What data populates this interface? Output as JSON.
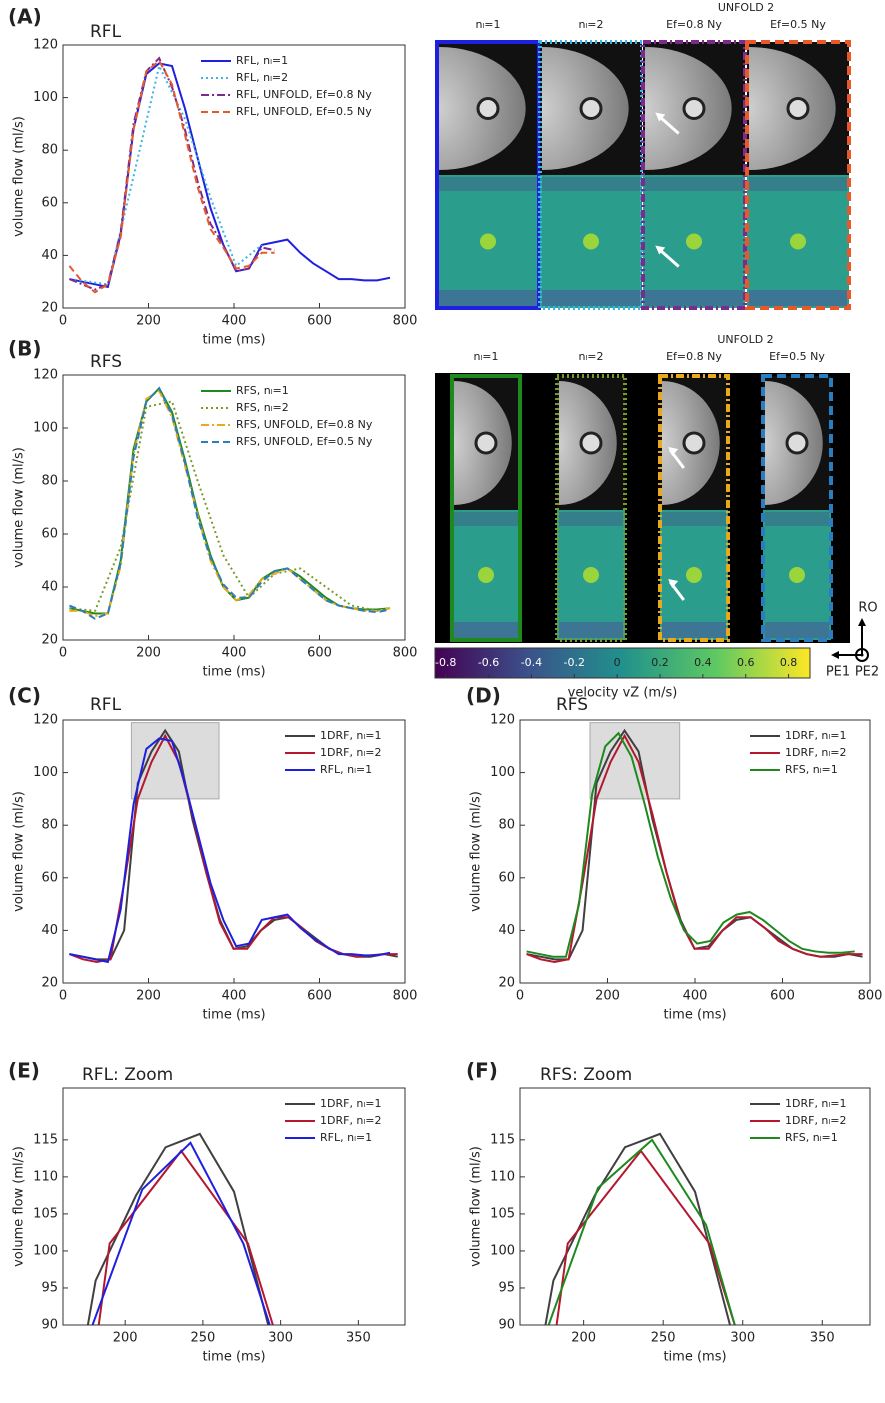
{
  "chart_data": [
    {
      "type": "line",
      "panel_label": "(A)",
      "title": "RFL",
      "xlabel": "time (ms)",
      "ylabel": "volume flow (ml/s)",
      "xlim": [
        0,
        800
      ],
      "ylim": [
        20,
        120
      ],
      "xticks": [
        0,
        200,
        400,
        600,
        800
      ],
      "yticks": [
        20,
        40,
        60,
        80,
        100,
        120
      ],
      "legend": "upper right",
      "series": [
        {
          "name": "RFL, nₗ=1",
          "color": "#1f1fe0",
          "dash": "solid",
          "x": [
            15,
            45,
            75,
            105,
            135,
            165,
            195,
            225,
            255,
            285,
            315,
            345,
            375,
            405,
            435,
            465,
            495,
            525,
            555,
            585,
            615,
            645,
            675,
            705,
            735,
            765
          ],
          "values": [
            31,
            30,
            29,
            28,
            48,
            88,
            109,
            113,
            112,
            96,
            77,
            58,
            44,
            34,
            35,
            44,
            45,
            46,
            41,
            37,
            34,
            31,
            31,
            30.5,
            30.5,
            31.5
          ]
        },
        {
          "name": "RFL, nₗ=2",
          "color": "#3bb4e6",
          "dash": "dotted",
          "x": [
            15,
            105,
            165,
            225,
            285,
            345,
            405,
            465
          ],
          "values": [
            31,
            29,
            70,
            112,
            92,
            62,
            36,
            44
          ]
        },
        {
          "name": "RFL, UNFOLD, Ef=0.8 Ny",
          "color": "#7b2a8e",
          "dash": "dashdot",
          "x": [
            15,
            45,
            75,
            105,
            135,
            165,
            195,
            225,
            255,
            285,
            315,
            345,
            375,
            405,
            435,
            465,
            495
          ],
          "values": [
            31,
            29,
            27,
            29,
            49,
            90,
            110,
            115,
            104,
            88,
            68,
            52,
            44,
            34,
            35,
            43,
            42
          ]
        },
        {
          "name": "RFL, UNFOLD, Ef=0.5 Ny",
          "color": "#e8592a",
          "dash": "dashed",
          "x": [
            15,
            45,
            75,
            105,
            135,
            165,
            195,
            225,
            255,
            285,
            315,
            345,
            375,
            405,
            435,
            465,
            495
          ],
          "values": [
            36,
            30,
            26,
            29,
            47,
            88,
            110,
            114,
            105,
            86,
            66,
            50,
            43,
            35,
            36,
            41,
            41
          ]
        }
      ]
    },
    {
      "type": "line",
      "panel_label": "(B)",
      "title": "RFS",
      "xlabel": "time (ms)",
      "ylabel": "volume flow (ml/s)",
      "xlim": [
        0,
        800
      ],
      "ylim": [
        20,
        120
      ],
      "xticks": [
        0,
        200,
        400,
        600,
        800
      ],
      "yticks": [
        20,
        40,
        60,
        80,
        100,
        120
      ],
      "legend": "upper right",
      "series": [
        {
          "name": "RFS, nₗ=1",
          "color": "#1e8a1e",
          "dash": "solid",
          "x": [
            15,
            45,
            75,
            105,
            135,
            165,
            195,
            225,
            255,
            285,
            315,
            345,
            375,
            405,
            435,
            465,
            495,
            525,
            555,
            585,
            615,
            645,
            675,
            705,
            735,
            765
          ],
          "values": [
            32,
            31,
            30,
            30,
            50,
            92,
            110,
            115,
            106,
            88,
            68,
            52,
            40,
            35,
            36,
            43,
            46,
            47,
            44,
            40,
            36,
            33,
            32,
            31.5,
            31.5,
            32
          ]
        },
        {
          "name": "RFS, nₗ=2",
          "color": "#7a9a2a",
          "dash": "dotted",
          "x": [
            15,
            75,
            135,
            195,
            255,
            315,
            375,
            435,
            495,
            555,
            615,
            675,
            735,
            765
          ],
          "values": [
            32,
            31,
            55,
            108,
            110,
            80,
            52,
            36,
            45,
            47,
            40,
            33,
            31,
            32
          ]
        },
        {
          "name": "RFS, UNFOLD, Ef=0.8 Ny",
          "color": "#e8a91a",
          "dash": "dashdot",
          "x": [
            15,
            45,
            75,
            105,
            135,
            165,
            195,
            225,
            255,
            285,
            315,
            345,
            375,
            405,
            435,
            465,
            495,
            525,
            555,
            585,
            615,
            645,
            675,
            705,
            735,
            765
          ],
          "values": [
            31,
            31,
            29,
            30,
            48,
            90,
            111,
            114,
            104,
            86,
            67,
            50,
            40,
            35,
            37,
            43,
            45,
            47,
            43,
            39,
            35,
            33,
            32,
            31,
            31,
            32
          ]
        },
        {
          "name": "RFS, UNFOLD, Ef=0.5 Ny",
          "color": "#2a7ec0",
          "dash": "dashed",
          "x": [
            15,
            45,
            75,
            105,
            135,
            165,
            195,
            225,
            255,
            285,
            315,
            345,
            375,
            405,
            435,
            465,
            495,
            525,
            555,
            585,
            615,
            645,
            675,
            705,
            735,
            765
          ],
          "values": [
            33,
            31,
            28,
            30,
            49,
            89,
            110,
            115,
            105,
            87,
            66,
            51,
            41,
            36,
            36,
            42,
            46,
            47,
            43,
            39,
            35,
            33,
            32,
            31,
            30.5,
            31.5
          ]
        }
      ]
    },
    {
      "type": "colorbar",
      "xlabel": "velocity vZ (m/s)",
      "xlim": [
        -0.85,
        0.9
      ],
      "xticks": [
        -0.8,
        -0.6,
        -0.4,
        -0.2,
        0,
        0.2,
        0.4,
        0.6,
        0.8
      ]
    },
    {
      "type": "line",
      "panel_label": "(C)",
      "title": "RFL",
      "xlabel": "time (ms)",
      "ylabel": "volume flow (ml/s)",
      "xlim": [
        0,
        800
      ],
      "ylim": [
        20,
        120
      ],
      "xticks": [
        0,
        200,
        400,
        600,
        800
      ],
      "yticks": [
        20,
        40,
        60,
        80,
        100,
        120
      ],
      "legend": "upper right",
      "zoom_box": {
        "x": [
          160,
          365
        ],
        "y": [
          90,
          119
        ]
      },
      "series": [
        {
          "name": "1DRF, nₗ=1",
          "color": "#404040",
          "dash": "solid",
          "x": [
            15,
            47,
            79,
            111,
            143,
            175,
            207,
            239,
            271,
            303,
            335,
            367,
            399,
            431,
            463,
            495,
            527,
            559,
            591,
            623,
            655,
            687,
            719,
            751,
            783
          ],
          "values": [
            31,
            30,
            29,
            29,
            40,
            96,
            108,
            116,
            108,
            82,
            62,
            44,
            33,
            34,
            40,
            44,
            45,
            41,
            37,
            33,
            31,
            30,
            30,
            31,
            30
          ]
        },
        {
          "name": "1DRF, nₗ=2",
          "color": "#b5172e",
          "dash": "solid",
          "x": [
            15,
            47,
            79,
            111,
            143,
            175,
            207,
            239,
            271,
            303,
            335,
            367,
            399,
            431,
            463,
            495,
            527,
            559,
            591,
            623,
            655,
            687,
            719,
            751,
            783
          ],
          "values": [
            31,
            29,
            28,
            29,
            58,
            90,
            104,
            114,
            104,
            84,
            62,
            43,
            33,
            33,
            40,
            45,
            45,
            41,
            36,
            33,
            31,
            30,
            30.5,
            31,
            31
          ]
        },
        {
          "name": "RFL, nₗ=1",
          "color": "#1f1fe0",
          "dash": "solid",
          "x": [
            15,
            45,
            75,
            105,
            135,
            165,
            195,
            225,
            255,
            285,
            315,
            345,
            375,
            405,
            435,
            465,
            495,
            525,
            555,
            585,
            615,
            645,
            675,
            705,
            735,
            765
          ],
          "values": [
            31,
            30,
            29,
            28,
            48,
            88,
            109,
            113,
            112,
            96,
            77,
            58,
            44,
            34,
            35,
            44,
            45,
            46,
            41,
            37,
            34,
            31,
            31,
            30.5,
            30.5,
            31.5
          ]
        }
      ]
    },
    {
      "type": "line",
      "panel_label": "(D)",
      "title": "RFS",
      "xlabel": "time (ms)",
      "ylabel": "volume flow (ml/s)",
      "xlim": [
        0,
        800
      ],
      "ylim": [
        20,
        120
      ],
      "xticks": [
        0,
        200,
        400,
        600,
        800
      ],
      "yticks": [
        20,
        40,
        60,
        80,
        100,
        120
      ],
      "legend": "upper right",
      "zoom_box": {
        "x": [
          160,
          365
        ],
        "y": [
          90,
          119
        ]
      },
      "series": [
        {
          "name": "1DRF, nₗ=1",
          "color": "#404040",
          "dash": "solid",
          "x": [
            15,
            47,
            79,
            111,
            143,
            175,
            207,
            239,
            271,
            303,
            335,
            367,
            399,
            431,
            463,
            495,
            527,
            559,
            591,
            623,
            655,
            687,
            719,
            751,
            783
          ],
          "values": [
            31,
            30,
            29,
            29,
            40,
            96,
            108,
            116,
            108,
            82,
            62,
            44,
            33,
            34,
            40,
            44,
            45,
            41,
            37,
            33,
            31,
            30,
            30,
            31,
            30
          ]
        },
        {
          "name": "1DRF, nₗ=2",
          "color": "#b5172e",
          "dash": "solid",
          "x": [
            15,
            47,
            79,
            111,
            143,
            175,
            207,
            239,
            271,
            303,
            335,
            367,
            399,
            431,
            463,
            495,
            527,
            559,
            591,
            623,
            655,
            687,
            719,
            751,
            783
          ],
          "values": [
            31,
            29,
            28,
            29,
            58,
            90,
            104,
            114,
            104,
            84,
            62,
            43,
            33,
            33,
            40,
            45,
            45,
            41,
            36,
            33,
            31,
            30,
            30.5,
            31,
            31
          ]
        },
        {
          "name": "RFS, nₗ=1",
          "color": "#1e8a1e",
          "dash": "solid",
          "x": [
            15,
            45,
            75,
            105,
            135,
            165,
            195,
            225,
            255,
            285,
            315,
            345,
            375,
            405,
            435,
            465,
            495,
            525,
            555,
            585,
            615,
            645,
            675,
            705,
            735,
            765
          ],
          "values": [
            32,
            31,
            30,
            30,
            50,
            92,
            110,
            115,
            106,
            88,
            68,
            52,
            40,
            35,
            36,
            43,
            46,
            47,
            44,
            40,
            36,
            33,
            32,
            31.5,
            31.5,
            32
          ]
        }
      ]
    },
    {
      "type": "line",
      "panel_label": "(E)",
      "title": "RFL: Zoom",
      "xlabel": "time (ms)",
      "ylabel": "volume flow (ml/s)",
      "xlim": [
        160,
        380
      ],
      "ylim": [
        90,
        122
      ],
      "xticks": [
        200,
        250,
        300,
        350
      ],
      "yticks": [
        90,
        95,
        100,
        105,
        110,
        115
      ],
      "legend": "upper right",
      "series": [
        {
          "name": "1DRF, nₗ=1",
          "color": "#404040",
          "dash": "solid",
          "x": [
            176,
            181,
            207,
            226,
            248,
            270,
            292
          ],
          "values": [
            90,
            96,
            107.5,
            114,
            115.8,
            108,
            90
          ]
        },
        {
          "name": "1DRF, nₗ=2",
          "color": "#b5172e",
          "dash": "solid",
          "x": [
            183,
            190,
            236,
            279,
            295
          ],
          "values": [
            90,
            101,
            113.5,
            101,
            90
          ]
        },
        {
          "name": "RFL, nₗ=1",
          "color": "#1f1fe0",
          "dash": "solid",
          "x": [
            179,
            211,
            242,
            276,
            293
          ],
          "values": [
            90,
            108.3,
            114.6,
            101,
            90
          ]
        }
      ]
    },
    {
      "type": "line",
      "panel_label": "(F)",
      "title": "RFS: Zoom",
      "xlabel": "time (ms)",
      "ylabel": "volume flow (ml/s)",
      "xlim": [
        160,
        380
      ],
      "ylim": [
        90,
        122
      ],
      "xticks": [
        200,
        250,
        300,
        350
      ],
      "yticks": [
        90,
        95,
        100,
        105,
        110,
        115
      ],
      "legend": "upper right",
      "series": [
        {
          "name": "1DRF, nₗ=1",
          "color": "#404040",
          "dash": "solid",
          "x": [
            176,
            181,
            207,
            226,
            248,
            270,
            292
          ],
          "values": [
            90,
            96,
            107.5,
            114,
            115.8,
            108,
            90
          ]
        },
        {
          "name": "1DRF, nₗ=2",
          "color": "#b5172e",
          "dash": "solid",
          "x": [
            183,
            190,
            236,
            279,
            295
          ],
          "values": [
            90,
            101,
            113.5,
            101,
            90
          ]
        },
        {
          "name": "RFS, nₗ=1",
          "color": "#1e8a1e",
          "dash": "solid",
          "x": [
            178,
            209,
            243,
            277,
            295
          ],
          "values": [
            90,
            108.5,
            115,
            103.5,
            90
          ]
        }
      ]
    }
  ],
  "image_panels": [
    {
      "group_label": "UNFOLD 2",
      "columns": [
        "nₗ=1",
        "nₗ=2",
        "Ef=0.8 Ny",
        "Ef=0.5 Ny"
      ]
    },
    {
      "group_label": "UNFOLD 2",
      "columns": [
        "nₗ=1",
        "nₗ=2",
        "Ef=0.8 Ny",
        "Ef=0.5 Ny"
      ]
    }
  ],
  "orientation": {
    "up": "RO",
    "left": "PE1",
    "through": "PE2"
  }
}
